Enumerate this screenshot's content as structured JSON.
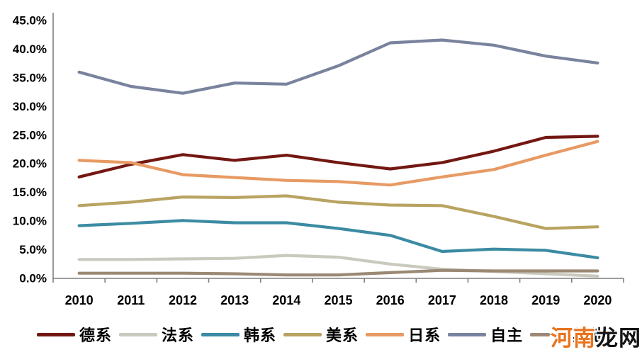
{
  "watermark": {
    "part1": "河南",
    "part2": "龙网"
  },
  "chart_data": {
    "type": "line",
    "title": "",
    "xlabel": "",
    "ylabel": "",
    "categories": [
      "2010",
      "2011",
      "2012",
      "2013",
      "2014",
      "2015",
      "2016",
      "2017",
      "2018",
      "2019",
      "2020"
    ],
    "series": [
      {
        "name": "德系",
        "color": "#731712",
        "values": [
          17.7,
          19.9,
          21.6,
          20.6,
          21.5,
          20.2,
          19.1,
          20.2,
          22.2,
          24.6,
          24.8
        ]
      },
      {
        "name": "法系",
        "color": "#c9c9be",
        "values": [
          3.3,
          3.3,
          3.4,
          3.5,
          4.0,
          3.7,
          2.5,
          1.6,
          1.2,
          0.8,
          0.4
        ]
      },
      {
        "name": "韩系",
        "color": "#3b8ba3",
        "values": [
          9.2,
          9.6,
          10.1,
          9.7,
          9.7,
          8.7,
          7.5,
          4.7,
          5.1,
          4.9,
          3.6
        ]
      },
      {
        "name": "美系",
        "color": "#b9a361",
        "values": [
          12.7,
          13.3,
          14.2,
          14.1,
          14.4,
          13.3,
          12.8,
          12.7,
          10.8,
          8.7,
          9.0
        ]
      },
      {
        "name": "日系",
        "color": "#e79a63",
        "values": [
          20.6,
          20.2,
          18.1,
          17.6,
          17.1,
          16.9,
          16.3,
          17.7,
          19.0,
          21.5,
          23.9
        ]
      },
      {
        "name": "自主",
        "color": "#79839d",
        "values": [
          36.0,
          33.5,
          32.3,
          34.1,
          33.9,
          37.1,
          41.1,
          41.6,
          40.7,
          38.8,
          37.6
        ]
      },
      {
        "name": "其他",
        "color": "#9b8975",
        "values": [
          0.9,
          0.9,
          0.9,
          0.8,
          0.6,
          0.6,
          1.0,
          1.4,
          1.3,
          1.3,
          1.3
        ]
      }
    ],
    "ylim": [
      0,
      45
    ],
    "ytick_step": 5,
    "ytick_format": "percent_one_decimal",
    "grid": false,
    "legend_position": "bottom",
    "axis_color": "#7f7f7f",
    "tick_label_color": "#000000"
  }
}
